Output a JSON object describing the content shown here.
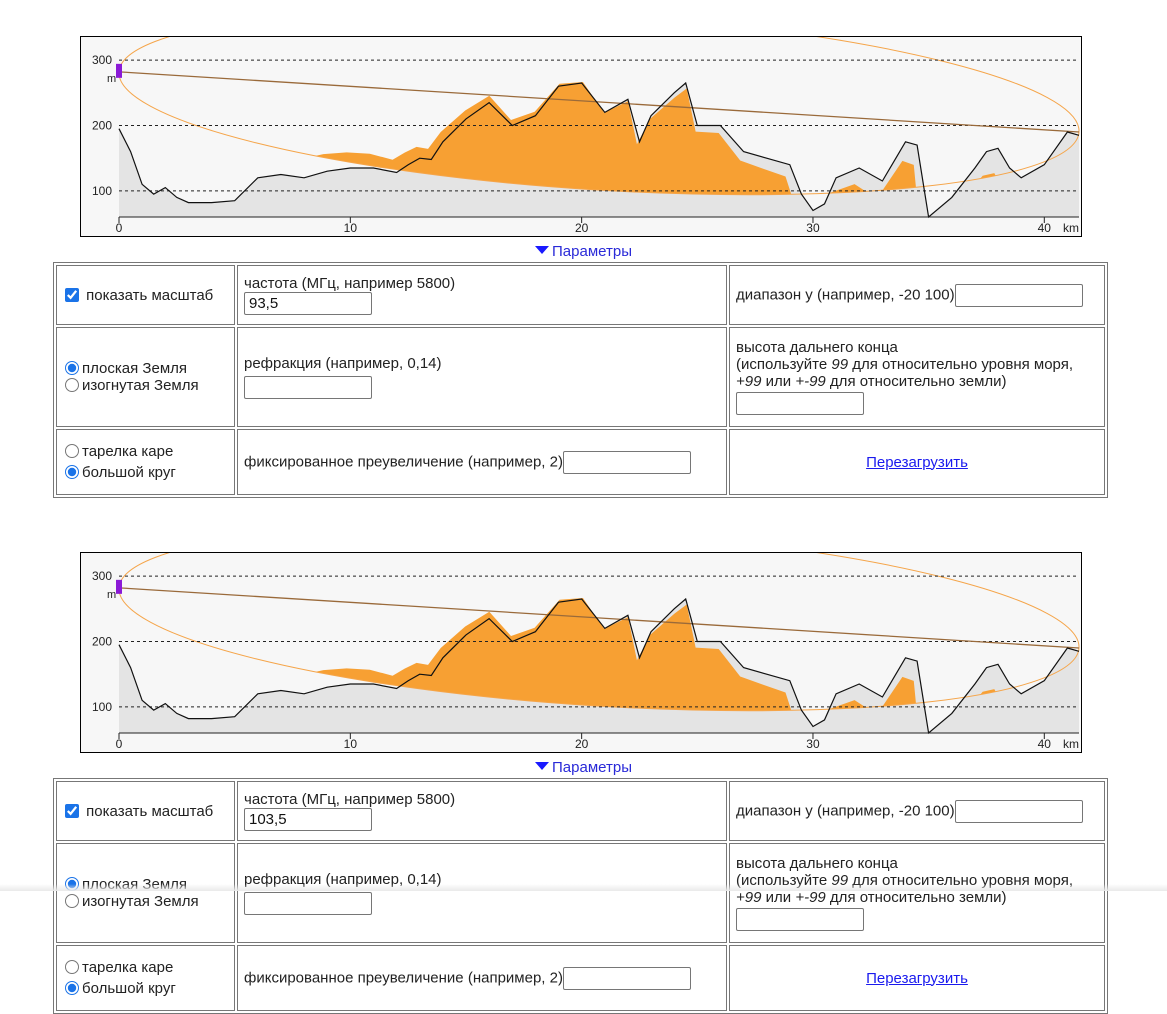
{
  "profiles": [
    {
      "chart_data": {
        "type": "area",
        "title": "",
        "xlabel": "",
        "ylabel": "",
        "x_unit": "km",
        "y_unit": "m",
        "xlim": [
          0,
          41.5
        ],
        "ylim": [
          60,
          320
        ],
        "x_ticks": [
          0,
          10,
          20,
          30,
          40
        ],
        "y_ticks": [
          100,
          200,
          300
        ],
        "grid": "horizontal dashed at 100, 200, 300",
        "series": [
          {
            "kind": "terrain_profile",
            "x": [
              0,
              0.5,
              1,
              1.5,
              2,
              2.5,
              3,
              4,
              5,
              6,
              7,
              8,
              9,
              10,
              11,
              12,
              12.5,
              13,
              13.5,
              14,
              15,
              16,
              17,
              18,
              19,
              20,
              21,
              22,
              22.5,
              23,
              24,
              24.5,
              25,
              26,
              27,
              28,
              29,
              29.5,
              30,
              30.5,
              31,
              32,
              33,
              34,
              34.5,
              35,
              36,
              37,
              37.5,
              38,
              38.5,
              39,
              40,
              41,
              41.5
            ],
            "values": [
              195,
              160,
              110,
              95,
              105,
              90,
              82,
              82,
              85,
              120,
              125,
              120,
              130,
              135,
              135,
              128,
              140,
              150,
              148,
              175,
              210,
              235,
              200,
              215,
              260,
              265,
              220,
              240,
              175,
              215,
              250,
              265,
              200,
              200,
              160,
              150,
              140,
              95,
              70,
              80,
              120,
              135,
              115,
              175,
              170,
              60,
              90,
              135,
              160,
              165,
              135,
              120,
              140,
              190,
              185
            ]
          },
          {
            "kind": "line_of_sight",
            "x": [
              0,
              41.5
            ],
            "values": [
              282,
              190
            ]
          }
        ],
        "fresnel_zone": true
      },
      "toggle_label": "Параметры",
      "params": {
        "show_scale_label": "показать масштаб",
        "show_scale_checked": true,
        "frequency_label": "частота (МГц, например 5800)",
        "frequency_value": "93,5",
        "yrange_label": "диапазон y (например, -20 100)",
        "yrange_value": "",
        "flat_earth_label": "плоская Земля",
        "curved_earth_label": "изогнутая Земля",
        "earth_selected": "flat",
        "refraction_label": "рефракция (например, 0,14)",
        "refraction_value": "",
        "far_end_title": "высота дальнего конца",
        "far_end_hint_1": "(используйте ",
        "far_end_hint_99a": "99",
        "far_end_hint_2": " для относительно уровня моря, ",
        "far_end_hint_99b": "+99",
        "far_end_hint_3": " или ",
        "far_end_hint_99c": "+-99",
        "far_end_hint_4": " для относительно земли)",
        "far_end_value": "",
        "plate_carree_label": "тарелка каре",
        "great_circle_label": "большой круг",
        "projection_selected": "great_circle",
        "fixed_exag_label": "фиксированное преувеличение (например, 2)",
        "fixed_exag_value": "",
        "reload_label": "Перезагрузить"
      }
    },
    {
      "chart_data": {
        "type": "area",
        "title": "",
        "xlabel": "",
        "ylabel": "",
        "x_unit": "km",
        "y_unit": "m",
        "xlim": [
          0,
          41.5
        ],
        "ylim": [
          60,
          320
        ],
        "x_ticks": [
          0,
          10,
          20,
          30,
          40
        ],
        "y_ticks": [
          100,
          200,
          300
        ],
        "grid": "horizontal dashed at 100, 200, 300",
        "series": [
          {
            "kind": "terrain_profile",
            "x": [
              0,
              0.5,
              1,
              1.5,
              2,
              2.5,
              3,
              4,
              5,
              6,
              7,
              8,
              9,
              10,
              11,
              12,
              12.5,
              13,
              13.5,
              14,
              15,
              16,
              17,
              18,
              19,
              20,
              21,
              22,
              22.5,
              23,
              24,
              24.5,
              25,
              26,
              27,
              28,
              29,
              29.5,
              30,
              30.5,
              31,
              32,
              33,
              34,
              34.5,
              35,
              36,
              37,
              37.5,
              38,
              38.5,
              39,
              40,
              41,
              41.5
            ],
            "values": [
              195,
              160,
              110,
              95,
              105,
              90,
              82,
              82,
              85,
              120,
              125,
              120,
              130,
              135,
              135,
              128,
              140,
              150,
              148,
              175,
              210,
              235,
              200,
              215,
              260,
              265,
              220,
              240,
              175,
              215,
              250,
              265,
              200,
              200,
              160,
              150,
              140,
              95,
              70,
              80,
              120,
              135,
              115,
              175,
              170,
              60,
              90,
              135,
              160,
              165,
              135,
              120,
              140,
              190,
              185
            ]
          },
          {
            "kind": "line_of_sight",
            "x": [
              0,
              41.5
            ],
            "values": [
              282,
              190
            ]
          }
        ],
        "fresnel_zone": true
      },
      "toggle_label": "Параметры",
      "params": {
        "show_scale_label": "показать масштаб",
        "show_scale_checked": true,
        "frequency_label": "частота (МГц, например 5800)",
        "frequency_value": "103,5",
        "yrange_label": "диапазон y (например, -20 100)",
        "yrange_value": "",
        "flat_earth_label": "плоская Земля",
        "curved_earth_label": "изогнутая Земля",
        "earth_selected": "flat",
        "refraction_label": "рефракция (например, 0,14)",
        "refraction_value": "",
        "far_end_title": "высота дальнего конца",
        "far_end_hint_1": "(используйте ",
        "far_end_hint_99a": "99",
        "far_end_hint_2": " для относительно уровня моря, ",
        "far_end_hint_99b": "+99",
        "far_end_hint_3": " или ",
        "far_end_hint_99c": "+-99",
        "far_end_hint_4": " для относительно земли)",
        "far_end_value": "",
        "plate_carree_label": "тарелка каре",
        "great_circle_label": "большой круг",
        "projection_selected": "great_circle",
        "fixed_exag_label": "фиксированное преувеличение (например, 2)",
        "fixed_exag_value": "",
        "reload_label": "Перезагрузить"
      }
    }
  ],
  "axis_unit_m": "m",
  "axis_unit_km": "km",
  "colors": {
    "fresnel_fill": "#f7a033",
    "fresnel_outline": "#f5a54a",
    "terrain_fill": "#e4e4e4",
    "terrain_line": "#111111",
    "los_line": "#9a6a3a",
    "antenna": "#8b1ad6",
    "link": "#1a1aee"
  }
}
